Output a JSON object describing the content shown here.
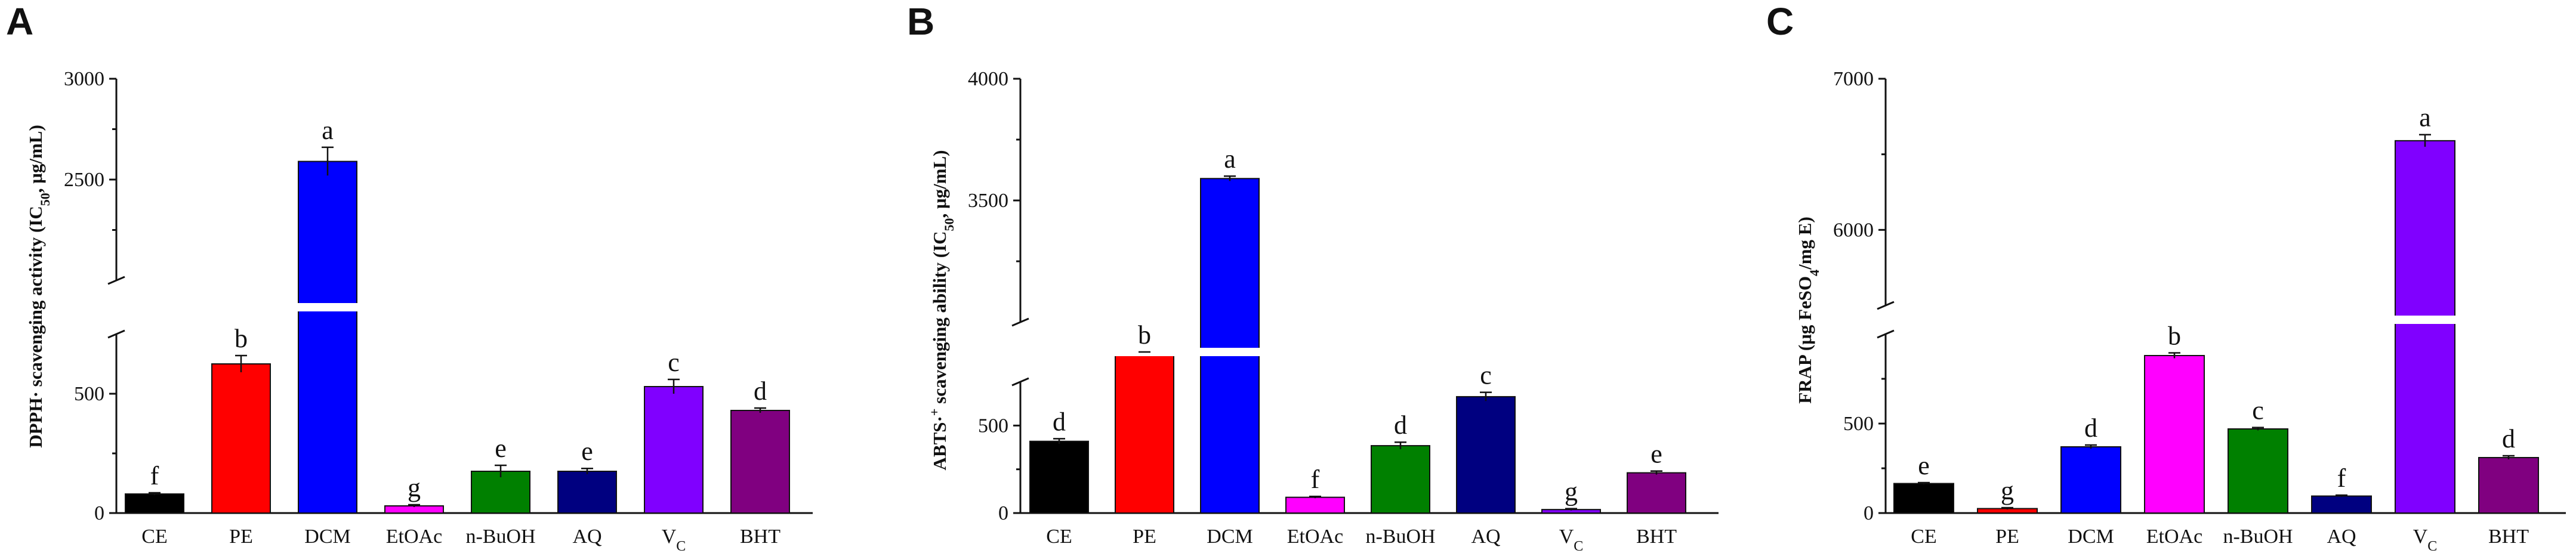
{
  "figure": {
    "panels": [
      {
        "letter": "A",
        "ylabel_main": "DPPH· scavenging activity (IC",
        "ylabel_sub": "50",
        "ylabel_tail": ", μg/mL)",
        "categories": [
          "CE",
          "PE",
          "DCM",
          "EtOAc",
          "n-BuOH",
          "AQ",
          "V",
          "BHT"
        ],
        "category_subscripts": [
          "",
          "",
          "",
          "",
          "",
          "",
          "C",
          ""
        ],
        "ticks": [
          "0",
          "500",
          "2500",
          "3000"
        ],
        "letters": [
          "f",
          "b",
          "a",
          "g",
          "e",
          "e",
          "c",
          "d"
        ]
      },
      {
        "letter": "B",
        "ylabel_main": "ABTS·",
        "ylabel_sup": "+",
        "ylabel_tail": " scavenging ability (IC",
        "ylabel_sub": "50",
        "ylabel_tail2": ", μg/mL)",
        "categories": [
          "CE",
          "PE",
          "DCM",
          "EtOAc",
          "n-BuOH",
          "AQ",
          "V",
          "BHT"
        ],
        "category_subscripts": [
          "",
          "",
          "",
          "",
          "",
          "",
          "C",
          ""
        ],
        "ticks": [
          "0",
          "500",
          "3500",
          "4000"
        ],
        "letters": [
          "d",
          "b",
          "a",
          "f",
          "d",
          "c",
          "g",
          "e"
        ]
      },
      {
        "letter": "C",
        "ylabel_main": "FRAP (μg FeSO",
        "ylabel_sub": "4",
        "ylabel_tail": "/mg E)",
        "categories": [
          "CE",
          "PE",
          "DCM",
          "EtOAc",
          "n-BuOH",
          "AQ",
          "V",
          "BHT"
        ],
        "category_subscripts": [
          "",
          "",
          "",
          "",
          "",
          "",
          "C",
          ""
        ],
        "ticks": [
          "0",
          "500",
          "6000",
          "7000"
        ],
        "letters": [
          "e",
          "g",
          "d",
          "b",
          "c",
          "f",
          "a",
          "d"
        ]
      }
    ]
  },
  "chart_data": [
    {
      "type": "bar",
      "title": "A",
      "ylabel": "DPPH· scavenging activity (IC50, μg/mL)",
      "categories": [
        "CE",
        "PE",
        "DCM",
        "EtOAc",
        "n-BuOH",
        "AQ",
        "VC",
        "BHT"
      ],
      "values": [
        80,
        625,
        2590,
        30,
        175,
        175,
        530,
        430
      ],
      "errors": [
        5,
        35,
        70,
        5,
        25,
        12,
        30,
        10
      ],
      "significance": [
        "f",
        "b",
        "a",
        "g",
        "e",
        "e",
        "c",
        "d"
      ],
      "colors": [
        "#000000",
        "#ff0000",
        "#0000ff",
        "#ff00ff",
        "#008000",
        "#000080",
        "#8000ff",
        "#800080"
      ],
      "y_axis_break": {
        "lower": [
          0,
          750
        ],
        "upper": [
          2000,
          3000
        ]
      }
    },
    {
      "type": "bar",
      "title": "B",
      "ylabel": "ABTS·+ scavenging ability (IC50, μg/mL)",
      "categories": [
        "CE",
        "PE",
        "DCM",
        "EtOAc",
        "n-BuOH",
        "AQ",
        "VC",
        "BHT"
      ],
      "values": [
        410,
        1040,
        3590,
        90,
        385,
        665,
        20,
        230
      ],
      "errors": [
        15,
        50,
        10,
        5,
        20,
        25,
        5,
        10
      ],
      "significance": [
        "d",
        "b",
        "a",
        "f",
        "d",
        "c",
        "g",
        "e"
      ],
      "colors": [
        "#000000",
        "#ff0000",
        "#0000ff",
        "#ff00ff",
        "#008000",
        "#000080",
        "#8000ff",
        "#800080"
      ],
      "y_axis_break": {
        "lower": [
          0,
          750
        ],
        "upper": [
          3000,
          4000
        ]
      }
    },
    {
      "type": "bar",
      "title": "C",
      "ylabel": "FRAP (μg FeSO4/mg E)",
      "categories": [
        "CE",
        "PE",
        "DCM",
        "EtOAc",
        "n-BuOH",
        "AQ",
        "VC",
        "BHT"
      ],
      "values": [
        165,
        25,
        370,
        880,
        470,
        95,
        6590,
        310
      ],
      "errors": [
        5,
        5,
        10,
        15,
        8,
        5,
        40,
        10
      ],
      "significance": [
        "e",
        "g",
        "d",
        "b",
        "c",
        "f",
        "a",
        "d"
      ],
      "colors": [
        "#000000",
        "#ff0000",
        "#0000ff",
        "#ff00ff",
        "#008000",
        "#000080",
        "#8000ff",
        "#800080"
      ],
      "y_axis_break": {
        "lower": [
          0,
          1000
        ],
        "upper": [
          5500,
          7000
        ]
      }
    }
  ]
}
